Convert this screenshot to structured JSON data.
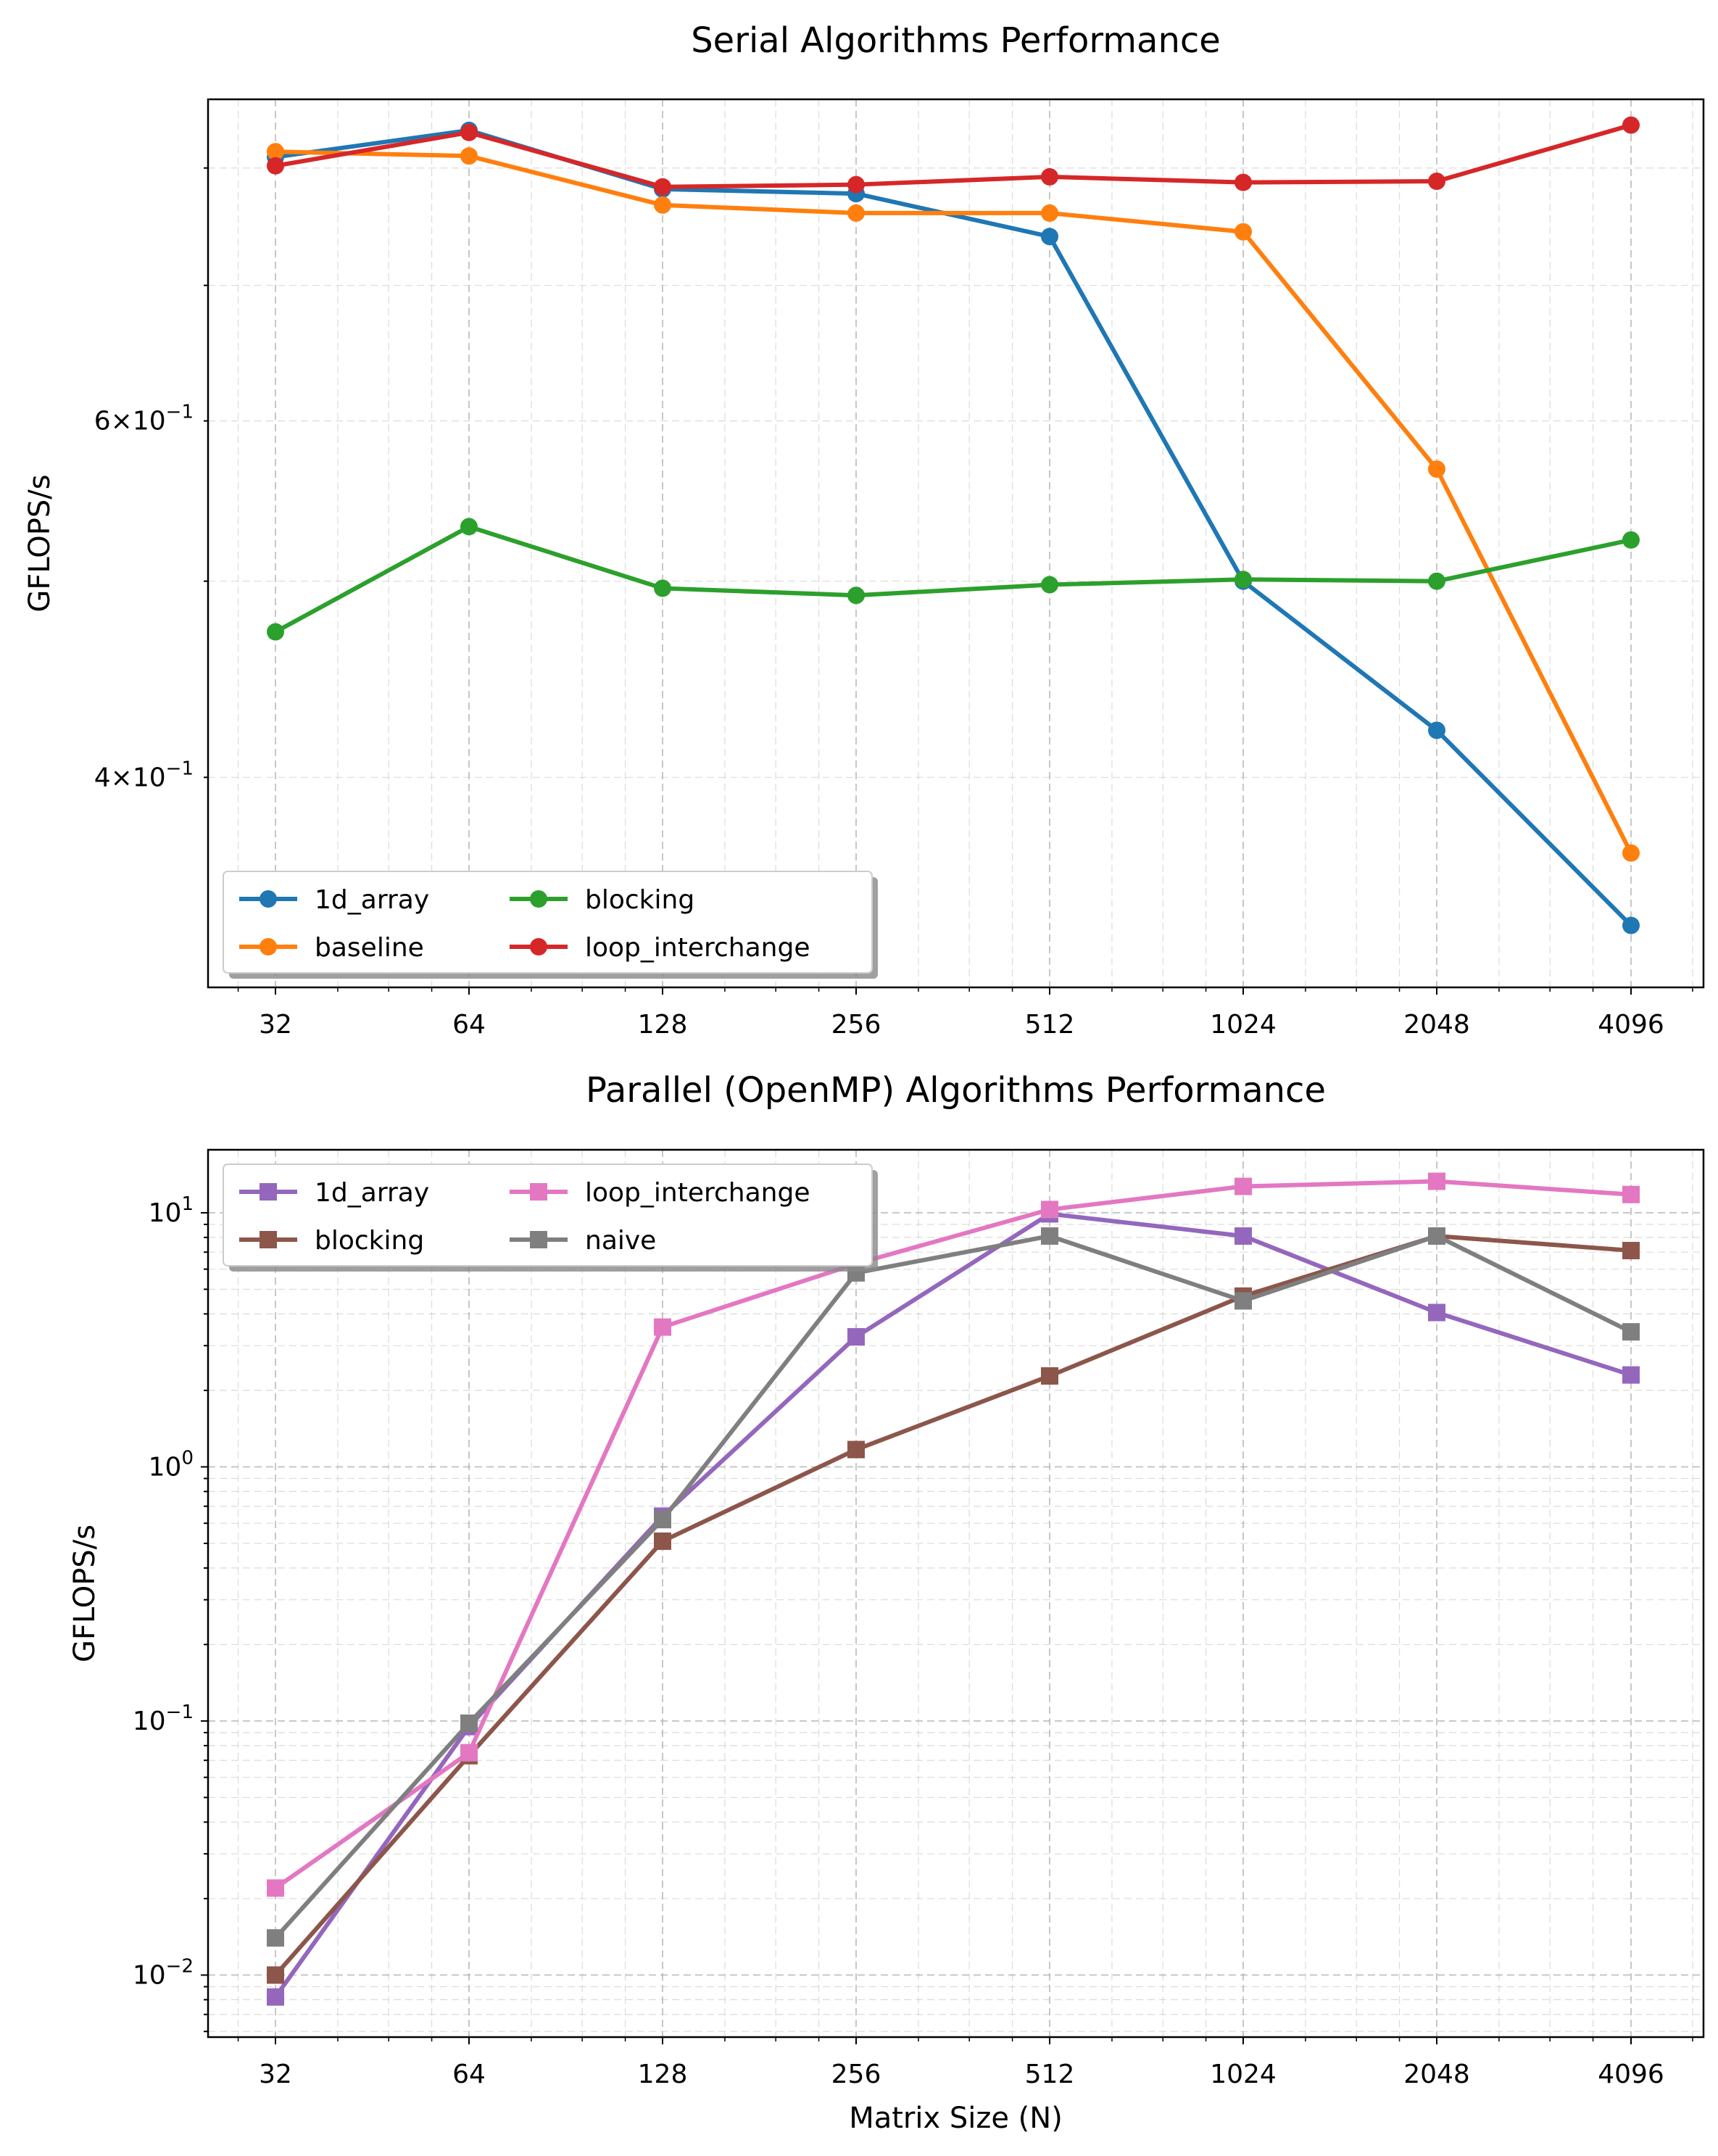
{
  "charts": [
    {
      "type": "line",
      "title": "Serial Algorithms Performance",
      "xlabel": "",
      "ylabel": "GFLOPS/s",
      "x": [
        32,
        64,
        128,
        256,
        512,
        1024,
        2048,
        4096
      ],
      "xticks": [
        "32",
        "64",
        "128",
        "256",
        "512",
        "1024",
        "2048",
        "4096"
      ],
      "xscale": "log2",
      "yscale": "log",
      "ylim": [
        0.315,
        0.865
      ],
      "yticks": [
        {
          "value": 0.4,
          "mant": "4×10",
          "exp": "−1"
        },
        {
          "value": 0.6,
          "mant": "6×10",
          "exp": "−1"
        }
      ],
      "grid": true,
      "legend": {
        "placement": "lower-left",
        "columns": 2
      },
      "marker": "circle",
      "series": [
        {
          "name": "1d_array",
          "color": "#1f77b4",
          "values": [
            0.81,
            0.835,
            0.781,
            0.777,
            0.74,
            0.5,
            0.422,
            0.338
          ]
        },
        {
          "name": "baseline",
          "color": "#ff7f0e",
          "values": [
            0.815,
            0.811,
            0.767,
            0.76,
            0.76,
            0.744,
            0.568,
            0.367
          ]
        },
        {
          "name": "blocking",
          "color": "#2ca02c",
          "values": [
            0.472,
            0.532,
            0.496,
            0.492,
            0.498,
            0.501,
            0.5,
            0.524
          ]
        },
        {
          "name": "loop_interchange",
          "color": "#d62728",
          "values": [
            0.802,
            0.833,
            0.783,
            0.785,
            0.792,
            0.787,
            0.788,
            0.84
          ]
        }
      ]
    },
    {
      "type": "line",
      "title": "Parallel (OpenMP) Algorithms Performance",
      "xlabel": "Matrix Size (N)",
      "ylabel": "GFLOPS/s",
      "x": [
        32,
        64,
        128,
        256,
        512,
        1024,
        2048,
        4096
      ],
      "xticks": [
        "32",
        "64",
        "128",
        "256",
        "512",
        "1024",
        "2048",
        "4096"
      ],
      "xscale": "log2",
      "yscale": "log",
      "ylim": [
        0.0057,
        17.7
      ],
      "yticks": [
        {
          "value": 0.01,
          "mant": "10",
          "exp": "−2"
        },
        {
          "value": 0.1,
          "mant": "10",
          "exp": "−1"
        },
        {
          "value": 1,
          "mant": "10",
          "exp": "0"
        },
        {
          "value": 10,
          "mant": "10",
          "exp": "1"
        }
      ],
      "grid": true,
      "legend": {
        "placement": "upper-left",
        "columns": 2
      },
      "marker": "square",
      "series": [
        {
          "name": "1d_array",
          "color": "#9467bd",
          "values": [
            0.0082,
            0.095,
            0.64,
            3.25,
            9.9,
            8.1,
            4.05,
            2.3
          ]
        },
        {
          "name": "blocking",
          "color": "#8c564b",
          "values": [
            0.01,
            0.073,
            0.51,
            1.17,
            2.28,
            4.7,
            8.1,
            7.1
          ]
        },
        {
          "name": "loop_interchange",
          "color": "#e377c2",
          "values": [
            0.022,
            0.075,
            3.55,
            6.3,
            10.3,
            12.7,
            13.3,
            11.8
          ]
        },
        {
          "name": "naive",
          "color": "#7f7f7f",
          "values": [
            0.014,
            0.098,
            0.62,
            5.8,
            8.1,
            4.5,
            8.1,
            3.4
          ]
        }
      ]
    }
  ]
}
